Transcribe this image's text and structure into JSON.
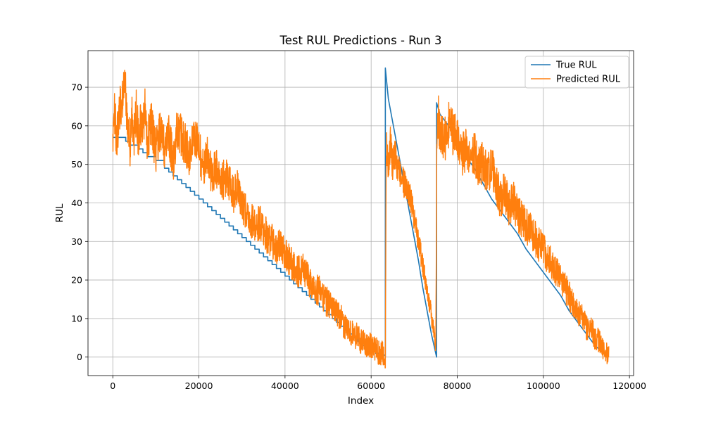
{
  "chart_data": {
    "type": "line",
    "title": "Test RUL Predictions - Run 3",
    "xlabel": "Index",
    "ylabel": "RUL",
    "xlim": [
      -5760,
      120960
    ],
    "ylim": [
      -4.8,
      79.5
    ],
    "xticks": [
      0,
      20000,
      40000,
      60000,
      80000,
      100000,
      120000
    ],
    "yticks": [
      0,
      10,
      20,
      30,
      40,
      50,
      60,
      70
    ],
    "grid": true,
    "legend_position": "upper right",
    "segments": [
      {
        "x_start": 0,
        "x_end": 63300,
        "y_start": 57,
        "y_end": 0
      },
      {
        "x_start": 63300,
        "x_end": 75200,
        "y_start": 75,
        "y_end": 0
      },
      {
        "x_start": 75200,
        "x_end": 115200,
        "y_start": 66,
        "y_end": 0
      }
    ],
    "series": [
      {
        "name": "True RUL",
        "color": "#1f77b4",
        "x": [
          0,
          3000,
          4000,
          6000,
          7000,
          8000,
          10000,
          12000,
          13000,
          14000,
          15000,
          16000,
          17000,
          18000,
          19000,
          20000,
          21000,
          22000,
          23000,
          24000,
          25000,
          26000,
          27000,
          28000,
          29000,
          30000,
          31000,
          32000,
          33000,
          34000,
          35000,
          36000,
          37000,
          38000,
          39000,
          40000,
          41000,
          42000,
          43000,
          44000,
          45000,
          46000,
          47000,
          48000,
          49000,
          50000,
          51000,
          52000,
          53000,
          54000,
          55000,
          56000,
          57000,
          58000,
          59000,
          60000,
          61000,
          62000,
          63300,
          63300,
          64000,
          65000,
          66000,
          67000,
          68000,
          69000,
          70000,
          71000,
          72000,
          73000,
          74000,
          75200,
          75200,
          76000,
          78000,
          80000,
          82000,
          84000,
          86000,
          88000,
          90000,
          92000,
          94000,
          96000,
          98000,
          100000,
          102000,
          104000,
          106000,
          108000,
          110000,
          112000,
          114000,
          115200
        ],
        "y": [
          57,
          56,
          55,
          54,
          53,
          52,
          51,
          49,
          48,
          47,
          46,
          45,
          44,
          43,
          42,
          41,
          40,
          39,
          38,
          37,
          36,
          35,
          34,
          33,
          32,
          31,
          30,
          29,
          28,
          27,
          26,
          25,
          24,
          23,
          22,
          21,
          20,
          19,
          18,
          17,
          16,
          15,
          14,
          13,
          12,
          11,
          10,
          9,
          8,
          7,
          6,
          5,
          4,
          3,
          2,
          1.5,
          1,
          0.5,
          0,
          75,
          67,
          61,
          55,
          49,
          43,
          37,
          31,
          25,
          18,
          12,
          6,
          0,
          66,
          63,
          60,
          57,
          52,
          49,
          45,
          41,
          38,
          35,
          32,
          28,
          25,
          22,
          19,
          16,
          12,
          9,
          6,
          3,
          1,
          0
        ]
      },
      {
        "name": "Predicted RUL",
        "color": "#ff7f0e",
        "x": [
          0,
          500,
          1000,
          1500,
          2000,
          2500,
          3000,
          3500,
          4000,
          4500,
          5000,
          5500,
          6000,
          6500,
          7000,
          7500,
          8000,
          9000,
          10000,
          11000,
          12000,
          13000,
          14000,
          15000,
          16000,
          17000,
          18000,
          19000,
          20000,
          21000,
          22000,
          23000,
          24000,
          25000,
          26000,
          27000,
          28000,
          29000,
          30000,
          31000,
          32000,
          33000,
          34000,
          35000,
          36000,
          37000,
          38000,
          39000,
          40000,
          41000,
          42000,
          43000,
          44000,
          45000,
          46000,
          47000,
          48000,
          49000,
          50000,
          51000,
          52000,
          53000,
          54000,
          55000,
          56000,
          57000,
          58000,
          59000,
          60000,
          61000,
          62000,
          63000,
          63300,
          63500,
          64000,
          64500,
          65000,
          65500,
          66000,
          67000,
          68000,
          69000,
          70000,
          71000,
          72000,
          73000,
          74000,
          74800,
          75000,
          75300,
          75600,
          76000,
          77000,
          78000,
          79000,
          80000,
          81000,
          82000,
          83000,
          84000,
          85000,
          86000,
          87000,
          88000,
          89000,
          90000,
          91000,
          92000,
          93000,
          94000,
          95000,
          96000,
          97000,
          98000,
          99000,
          100000,
          101000,
          102000,
          103000,
          104000,
          105000,
          106000,
          107000,
          108000,
          109000,
          110000,
          111000,
          112000,
          113000,
          114000,
          115000
        ],
        "y": [
          58,
          63,
          56,
          66,
          62,
          72,
          68,
          60,
          54,
          62,
          57,
          64,
          55,
          61,
          58,
          65,
          57,
          60,
          53,
          59,
          55,
          57,
          51,
          60,
          57,
          55,
          52,
          58,
          54,
          49,
          52,
          47,
          50,
          44,
          47,
          45,
          42,
          44,
          39,
          38,
          36,
          34,
          35,
          33,
          31,
          30,
          28,
          29,
          27,
          25,
          24,
          22,
          23,
          21,
          19,
          18,
          17,
          15,
          14,
          13,
          11,
          10,
          8,
          7,
          6,
          5,
          4,
          3,
          3,
          2,
          1,
          1,
          0,
          55,
          50,
          56,
          49,
          53,
          50,
          47,
          44,
          42,
          36,
          30,
          24,
          17,
          11,
          4,
          0,
          60,
          62,
          58,
          56,
          60,
          58,
          56,
          52,
          54,
          50,
          53,
          49,
          51,
          47,
          50,
          45,
          41,
          43,
          39,
          41,
          37,
          36,
          34,
          33,
          31,
          29,
          28,
          26,
          24,
          22,
          20,
          18,
          16,
          14,
          12,
          10,
          8,
          7,
          5,
          4,
          2,
          1
        ]
      }
    ]
  }
}
